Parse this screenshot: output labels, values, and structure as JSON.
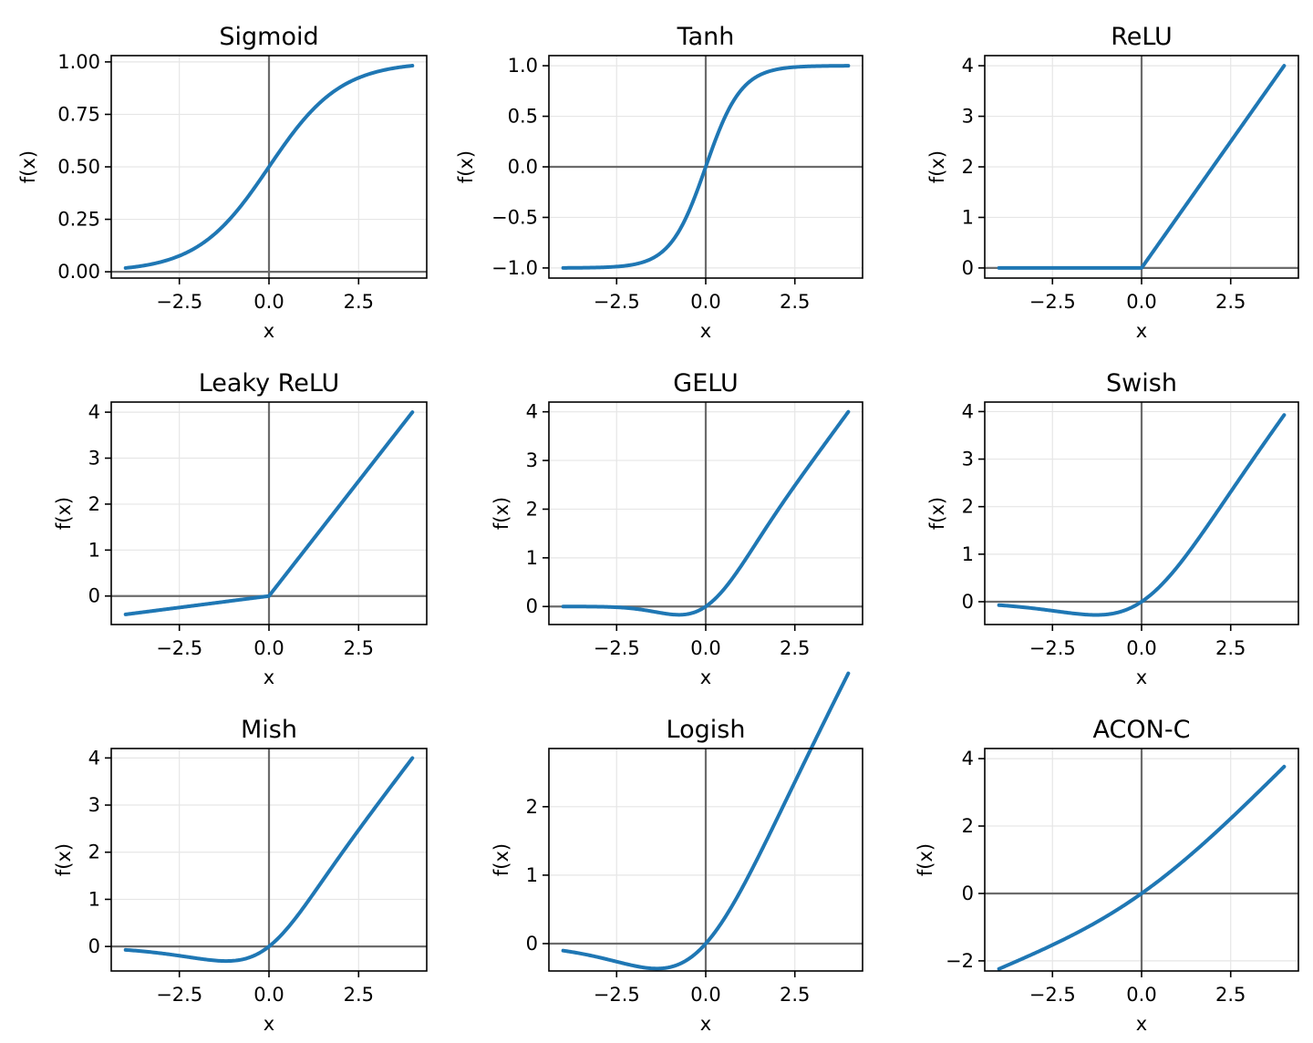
{
  "figure": {
    "line_color": "#1f77b4"
  },
  "chart_data": [
    {
      "type": "line",
      "title": "Sigmoid",
      "xlabel": "x",
      "ylabel": "f(x)",
      "function": "sigmoid",
      "x": [
        -4,
        4
      ],
      "xlim": [
        -4.4,
        4.4
      ],
      "ylim": [
        -0.03,
        1.03
      ],
      "xticks": [
        -2.5,
        0.0,
        2.5
      ],
      "xtick_labels": [
        "−2.5",
        "0.0",
        "2.5"
      ],
      "yticks": [
        0.0,
        0.25,
        0.5,
        0.75,
        1.0
      ],
      "ytick_labels": [
        "0.00",
        "0.25",
        "0.50",
        "0.75",
        "1.00"
      ],
      "grid": true
    },
    {
      "type": "line",
      "title": "Tanh",
      "xlabel": "x",
      "ylabel": "f(x)",
      "function": "tanh",
      "x": [
        -4,
        4
      ],
      "xlim": [
        -4.4,
        4.4
      ],
      "ylim": [
        -1.1,
        1.1
      ],
      "xticks": [
        -2.5,
        0.0,
        2.5
      ],
      "xtick_labels": [
        "−2.5",
        "0.0",
        "2.5"
      ],
      "yticks": [
        -1.0,
        -0.5,
        0.0,
        0.5,
        1.0
      ],
      "ytick_labels": [
        "−1.0",
        "−0.5",
        "0.0",
        "0.5",
        "1.0"
      ],
      "grid": true
    },
    {
      "type": "line",
      "title": "ReLU",
      "xlabel": "x",
      "ylabel": "f(x)",
      "function": "relu",
      "x": [
        -4,
        4
      ],
      "xlim": [
        -4.4,
        4.4
      ],
      "ylim": [
        -0.2,
        4.2
      ],
      "xticks": [
        -2.5,
        0.0,
        2.5
      ],
      "xtick_labels": [
        "−2.5",
        "0.0",
        "2.5"
      ],
      "yticks": [
        0,
        1,
        2,
        3,
        4
      ],
      "ytick_labels": [
        "0",
        "1",
        "2",
        "3",
        "4"
      ],
      "grid": true
    },
    {
      "type": "line",
      "title": "Leaky ReLU",
      "xlabel": "x",
      "ylabel": "f(x)",
      "function": "leaky_relu",
      "x": [
        -4,
        4
      ],
      "xlim": [
        -4.4,
        4.4
      ],
      "ylim": [
        -0.62,
        4.22
      ],
      "xticks": [
        -2.5,
        0.0,
        2.5
      ],
      "xtick_labels": [
        "−2.5",
        "0.0",
        "2.5"
      ],
      "yticks": [
        0,
        1,
        2,
        3,
        4
      ],
      "ytick_labels": [
        "0",
        "1",
        "2",
        "3",
        "4"
      ],
      "grid": true
    },
    {
      "type": "line",
      "title": "GELU",
      "xlabel": "x",
      "ylabel": "f(x)",
      "function": "gelu",
      "x": [
        -4,
        4
      ],
      "xlim": [
        -4.4,
        4.4
      ],
      "ylim": [
        -0.37,
        4.2
      ],
      "xticks": [
        -2.5,
        0.0,
        2.5
      ],
      "xtick_labels": [
        "−2.5",
        "0.0",
        "2.5"
      ],
      "yticks": [
        0,
        1,
        2,
        3,
        4
      ],
      "ytick_labels": [
        "0",
        "1",
        "2",
        "3",
        "4"
      ],
      "grid": true
    },
    {
      "type": "line",
      "title": "Swish",
      "xlabel": "x",
      "ylabel": "f(x)",
      "function": "swish",
      "x": [
        -4,
        4
      ],
      "xlim": [
        -4.4,
        4.4
      ],
      "ylim": [
        -0.48,
        4.2
      ],
      "xticks": [
        -2.5,
        0.0,
        2.5
      ],
      "xtick_labels": [
        "−2.5",
        "0.0",
        "2.5"
      ],
      "yticks": [
        0,
        1,
        2,
        3,
        4
      ],
      "ytick_labels": [
        "0",
        "1",
        "2",
        "3",
        "4"
      ],
      "grid": true
    },
    {
      "type": "line",
      "title": "Mish",
      "xlabel": "x",
      "ylabel": "f(x)",
      "function": "mish",
      "x": [
        -4,
        4
      ],
      "xlim": [
        -4.4,
        4.4
      ],
      "ylim": [
        -0.52,
        4.2
      ],
      "xticks": [
        -2.5,
        0.0,
        2.5
      ],
      "xtick_labels": [
        "−2.5",
        "0.0",
        "2.5"
      ],
      "yticks": [
        0,
        1,
        2,
        3,
        4
      ],
      "ytick_labels": [
        "0",
        "1",
        "2",
        "3",
        "4"
      ],
      "grid": true
    },
    {
      "type": "line",
      "title": "Logish",
      "xlabel": "x",
      "ylabel": "f(x)",
      "function": "logish",
      "x": [
        -4,
        4
      ],
      "xlim": [
        -4.4,
        4.4
      ],
      "ylim": [
        -0.4,
        2.85
      ],
      "xticks": [
        -2.5,
        0.0,
        2.5
      ],
      "xtick_labels": [
        "−2.5",
        "0.0",
        "2.5"
      ],
      "yticks": [
        0,
        1,
        2
      ],
      "ytick_labels": [
        "0",
        "1",
        "2"
      ],
      "grid": true
    },
    {
      "type": "line",
      "title": "ACON-C",
      "xlabel": "x",
      "ylabel": "f(x)",
      "function": "acon_c",
      "x": [
        -4,
        4
      ],
      "xlim": [
        -4.4,
        4.4
      ],
      "ylim": [
        -2.3,
        4.3
      ],
      "xticks": [
        -2.5,
        0.0,
        2.5
      ],
      "xtick_labels": [
        "−2.5",
        "0.0",
        "2.5"
      ],
      "yticks": [
        -2,
        0,
        2,
        4
      ],
      "ytick_labels": [
        "−2",
        "0",
        "2",
        "4"
      ],
      "grid": true
    }
  ]
}
